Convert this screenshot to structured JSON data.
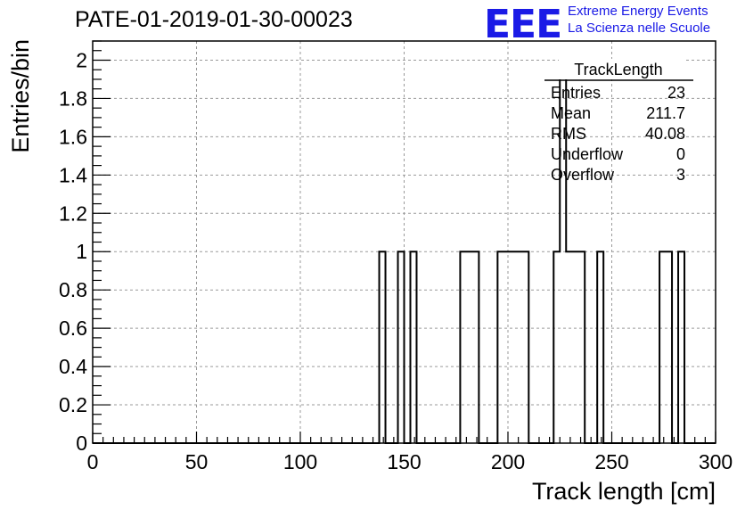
{
  "title": "PATE-01-2019-01-30-00023",
  "logo": {
    "mark": "EEE",
    "line1": "Extreme Energy Events",
    "line2": "La Scienza nelle Scuole",
    "color": "#1a1ae6"
  },
  "chart_data": {
    "type": "histogram",
    "xlabel": "Track length [cm]",
    "ylabel": "Entries/bin",
    "xlim": [
      0,
      300
    ],
    "ylim": [
      0,
      2.1
    ],
    "grid": true,
    "x_ticks": [
      0,
      50,
      100,
      150,
      200,
      250,
      300
    ],
    "x_tick_labels": [
      "0",
      "50",
      "100",
      "150",
      "200",
      "250",
      "300"
    ],
    "y_ticks": [
      0,
      0.2,
      0.4,
      0.6,
      0.8,
      1,
      1.2,
      1.4,
      1.6,
      1.8,
      2
    ],
    "y_tick_labels": [
      "0",
      "0.2",
      "0.4",
      "0.6",
      "0.8",
      "1",
      "1.2",
      "1.4",
      "1.6",
      "1.8",
      "2"
    ],
    "bin_width": 3,
    "bins": [
      {
        "x": 138,
        "y": 1
      },
      {
        "x": 147,
        "y": 1
      },
      {
        "x": 153,
        "y": 1
      },
      {
        "x": 177,
        "y": 1
      },
      {
        "x": 180,
        "y": 1
      },
      {
        "x": 183,
        "y": 1
      },
      {
        "x": 195,
        "y": 1
      },
      {
        "x": 198,
        "y": 1
      },
      {
        "x": 201,
        "y": 1
      },
      {
        "x": 204,
        "y": 1
      },
      {
        "x": 207,
        "y": 1
      },
      {
        "x": 222,
        "y": 1
      },
      {
        "x": 225,
        "y": 2
      },
      {
        "x": 228,
        "y": 1
      },
      {
        "x": 231,
        "y": 1
      },
      {
        "x": 234,
        "y": 1
      },
      {
        "x": 243,
        "y": 1
      },
      {
        "x": 273,
        "y": 1
      },
      {
        "x": 276,
        "y": 1
      },
      {
        "x": 282,
        "y": 1
      }
    ],
    "stats": {
      "name": "TrackLength",
      "rows": [
        {
          "label": "Entries",
          "value": "23"
        },
        {
          "label": "Mean",
          "value": "211.7"
        },
        {
          "label": "RMS",
          "value": "40.08"
        },
        {
          "label": "Underflow",
          "value": "0"
        },
        {
          "label": "Overflow",
          "value": "3"
        }
      ]
    }
  }
}
